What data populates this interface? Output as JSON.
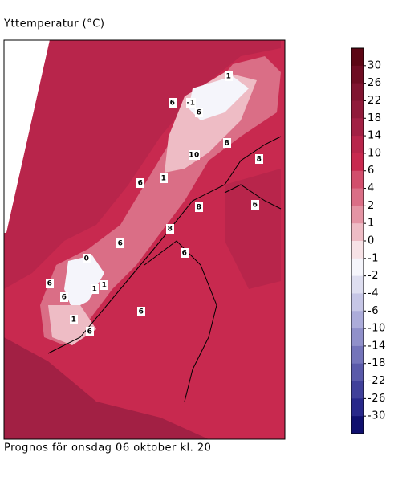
{
  "header": {
    "title": "Yttemperatur (°C)"
  },
  "map": {
    "caption": "Prognos för onsdag 06 oktober kl. 20",
    "contour_labels": [
      "6",
      "6",
      "-1",
      "1",
      "8",
      "10",
      "8",
      "8",
      "6",
      "1",
      "6",
      "8",
      "6",
      "6",
      "6",
      "0",
      "1",
      "1",
      "6",
      "1",
      "6",
      "6"
    ]
  },
  "colorbar": {
    "ticks": [
      30,
      26,
      22,
      18,
      14,
      10,
      6,
      4,
      2,
      1,
      0,
      -1,
      -2,
      -4,
      -6,
      -10,
      -14,
      -18,
      -22,
      -26,
      -30
    ],
    "colors": [
      "#5c0614",
      "#6e0c22",
      "#801430",
      "#901a3a",
      "#a22044",
      "#b8254b",
      "#c8294f",
      "#d24e6c",
      "#da6e86",
      "#e494a4",
      "#eebcc5",
      "#f7e2e6",
      "#f5f5fb",
      "#dedef0",
      "#c6c6e6",
      "#acacda",
      "#9090ca",
      "#7474ba",
      "#5a5aaa",
      "#40409a",
      "#28288a",
      "#10106e"
    ]
  }
}
